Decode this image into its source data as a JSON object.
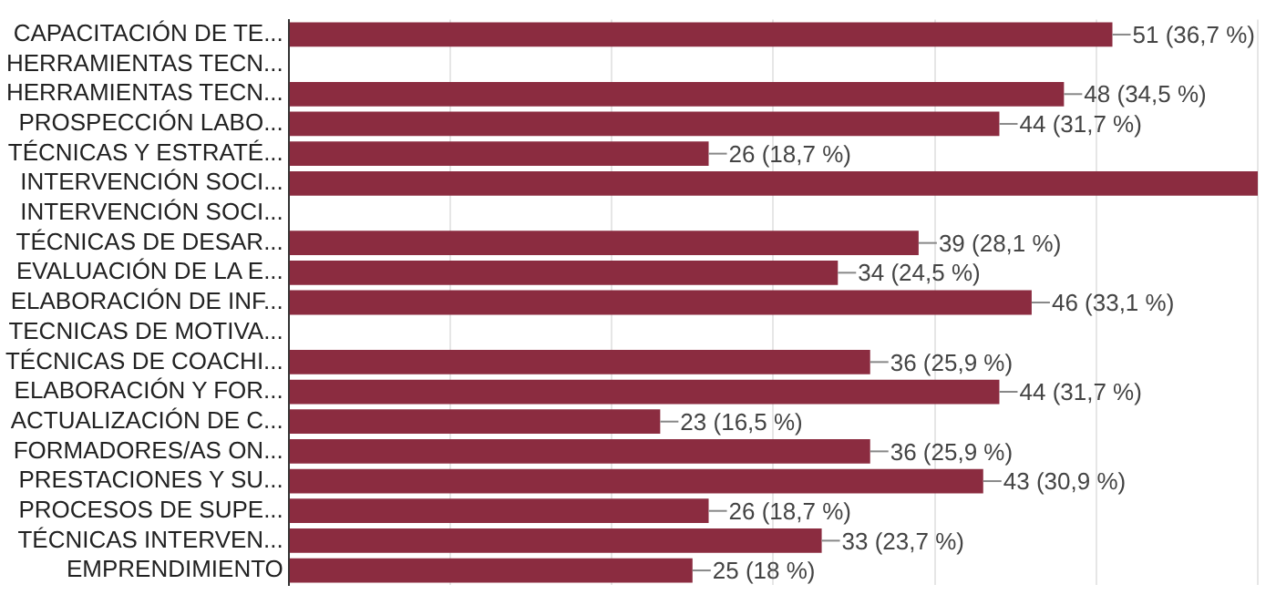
{
  "chart_data": {
    "type": "bar",
    "orientation": "horizontal",
    "categories": [
      "CAPACITACIÓN DE TE...",
      "HERRAMIENTAS TECN...",
      "HERRAMIENTAS TECN...",
      "PROSPECCIÓN LABO...",
      "TÉCNICAS Y ESTRATÉ...",
      "INTERVENCIÓN SOCI...",
      "INTERVENCIÓN SOCI...",
      "TÉCNICAS DE DESAR...",
      "EVALUACIÓN DE LA E...",
      "ELABORACIÓN DE INF...",
      "TECNICAS DE MOTIVA...",
      "TÉCNICAS DE COACHI...",
      "ELABORACIÓN Y FOR...",
      "ACTUALIZACIÓN DE C...",
      "FORMADORES/AS ON...",
      "PRESTACIONES Y SU...",
      "PROCESOS DE SUPE...",
      "TÉCNICAS INTERVEN...",
      "EMPRENDIMIENTO"
    ],
    "values": [
      51,
      0,
      48,
      44,
      26,
      60,
      0,
      39,
      34,
      46,
      0,
      36,
      44,
      23,
      36,
      43,
      26,
      33,
      25
    ],
    "value_labels": [
      "51 (36,7 %)",
      null,
      "48 (34,5 %)",
      "44 (31,7 %)",
      "26 (18,7 %)",
      null,
      null,
      "39 (28,1 %)",
      "34 (24,5 %)",
      "46 (33,1 %)",
      null,
      "36 (25,9 %)",
      "44 (31,7 %)",
      "23 (16,5 %)",
      "36 (25,9 %)",
      "43 (30,9 %)",
      "26 (18,7 %)",
      "33 (23,7 %)",
      "25 (18 %)"
    ],
    "color": "#8b2c40",
    "xlim": [
      0,
      60
    ],
    "xticks": [
      {
        "value": 0,
        "label": null
      },
      {
        "value": 10,
        "label": null
      },
      {
        "value": 20,
        "label": null
      },
      {
        "value": 30,
        "label": null
      },
      {
        "value": 40,
        "label": null
      },
      {
        "value": 50,
        "label": null
      },
      {
        "value": 60,
        "label": null
      }
    ],
    "tick_labels": "y",
    "grid": "x",
    "legend": false
  }
}
